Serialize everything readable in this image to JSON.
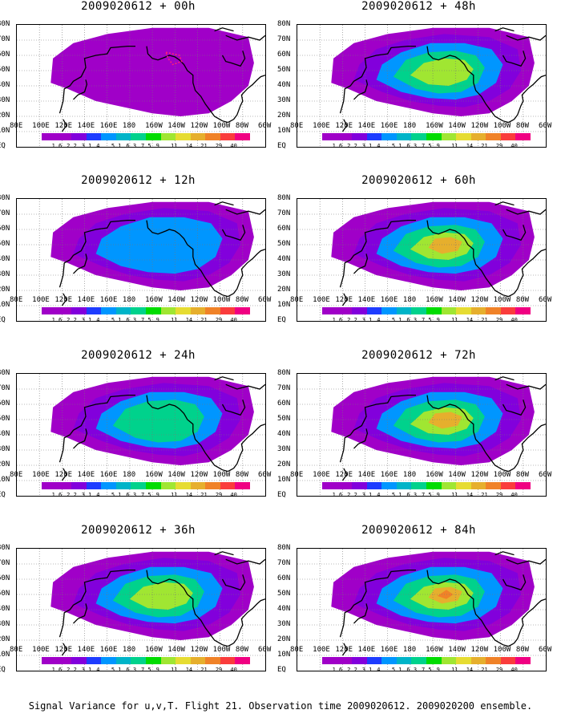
{
  "chart_data": [
    {
      "type": "heatmap",
      "title": "2009020612 + 00h",
      "lead_hours": 0
    },
    {
      "type": "heatmap",
      "title": "2009020612 + 48h",
      "lead_hours": 48
    },
    {
      "type": "heatmap",
      "title": "2009020612 + 12h",
      "lead_hours": 12
    },
    {
      "type": "heatmap",
      "title": "2009020612 + 60h",
      "lead_hours": 60
    },
    {
      "type": "heatmap",
      "title": "2009020612 + 24h",
      "lead_hours": 24
    },
    {
      "type": "heatmap",
      "title": "2009020612 + 72h",
      "lead_hours": 72
    },
    {
      "type": "heatmap",
      "title": "2009020612 + 36h",
      "lead_hours": 36
    },
    {
      "type": "heatmap",
      "title": "2009020612 + 84h",
      "lead_hours": 84
    }
  ],
  "lat_labels": [
    "80N",
    "70N",
    "60N",
    "50N",
    "40N",
    "30N",
    "20N",
    "10N",
    "EQ"
  ],
  "lon_labels": [
    "80E",
    "100E",
    "120E",
    "140E",
    "160E",
    "180",
    "160W",
    "140W",
    "120W",
    "100W",
    "80W",
    "60W"
  ],
  "colorbar": {
    "levels": [
      "1.6",
      "2.2",
      "3.1",
      "4",
      "5.1",
      "6.3",
      "7.5",
      "9",
      "11",
      "14",
      "21",
      "29",
      "40"
    ],
    "colors": [
      "#a000c8",
      "#8200dc",
      "#1e3cff",
      "#0096ff",
      "#00b4c8",
      "#00d28c",
      "#00dc00",
      "#a0e632",
      "#e6dc32",
      "#e6af2d",
      "#f08228",
      "#fa3c3c",
      "#f00082"
    ]
  },
  "caption": "Signal Variance for u,v,T. Flight 21. Observation time 2009020612. 2009020200 ensemble."
}
